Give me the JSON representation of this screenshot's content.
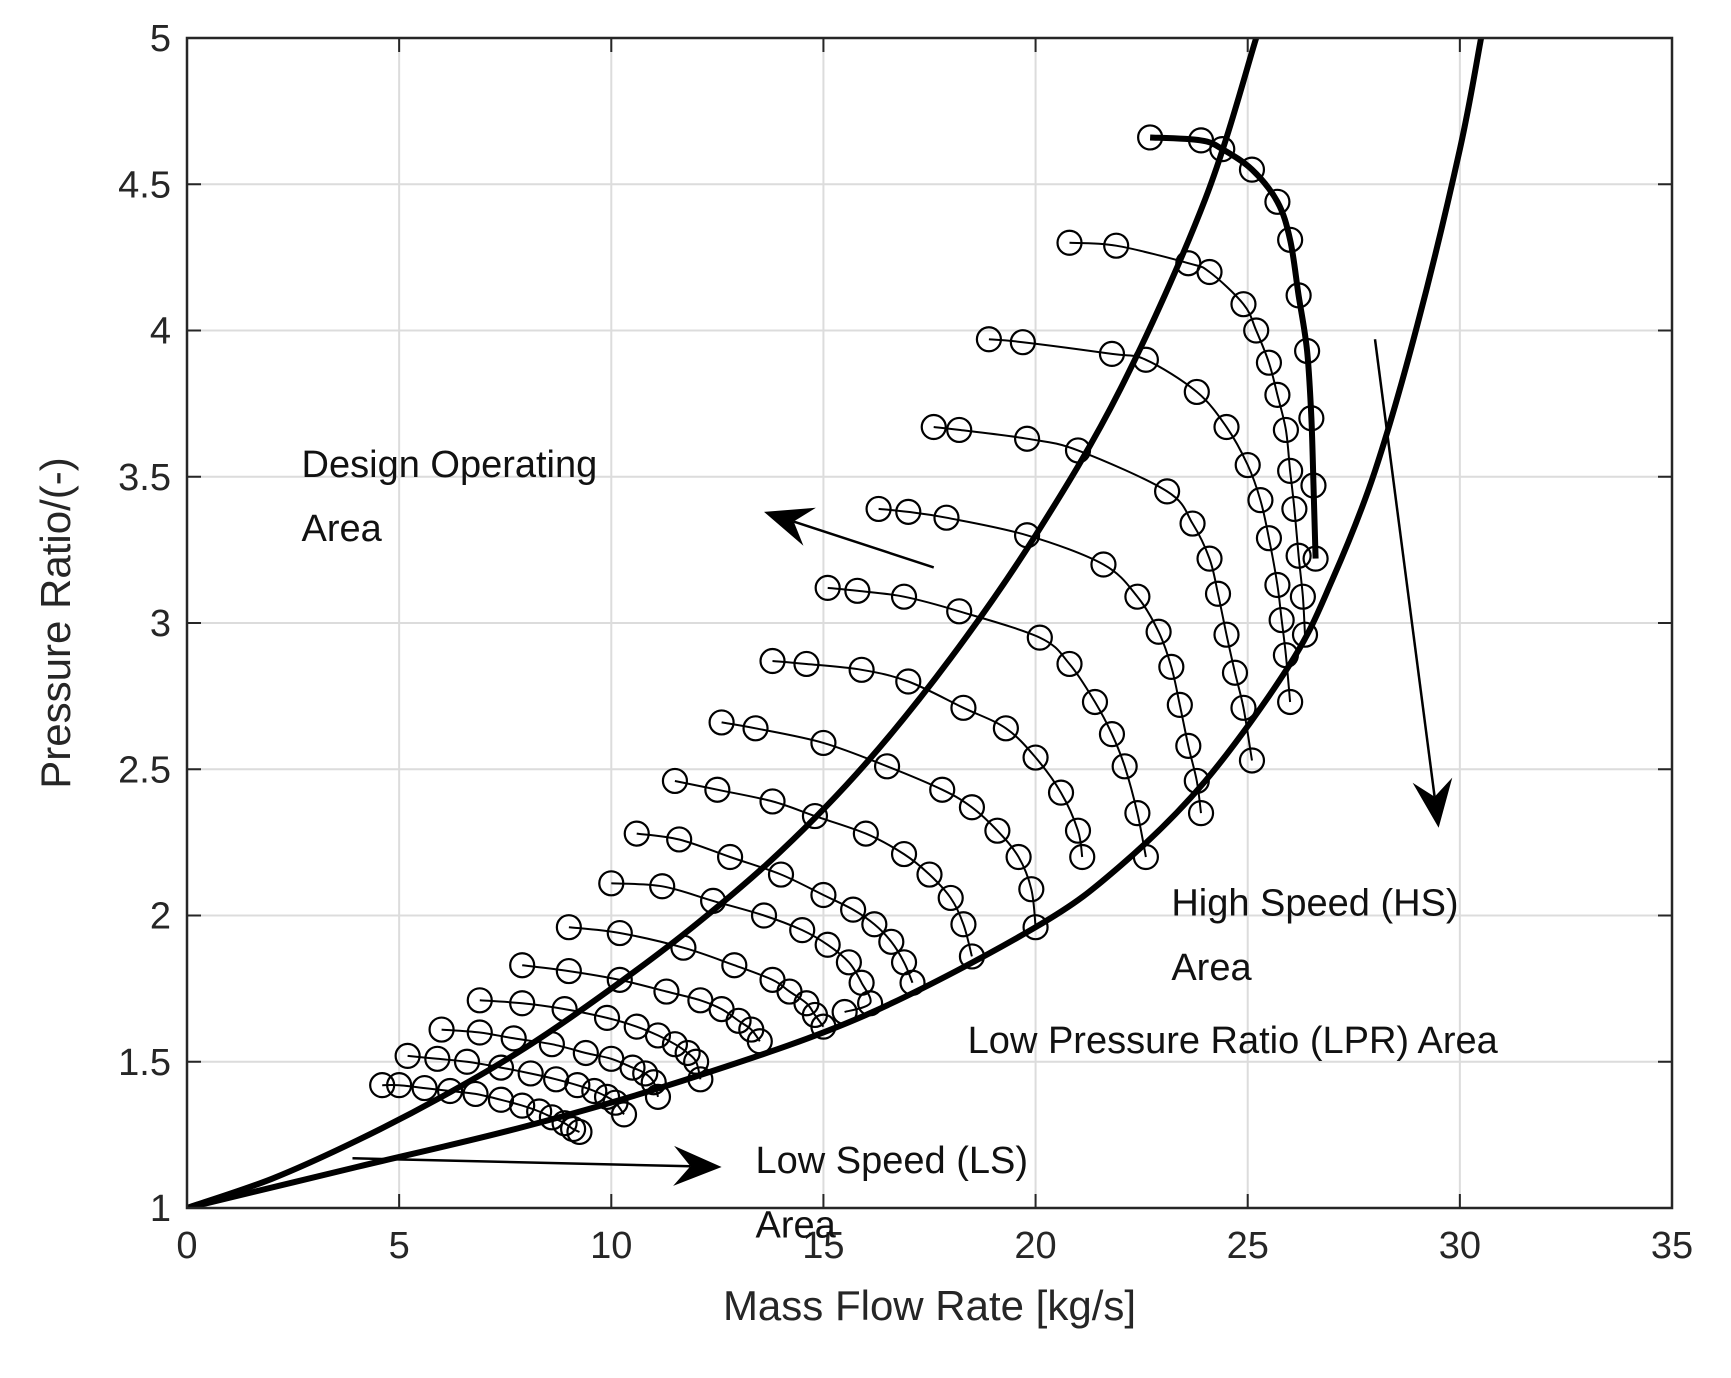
{
  "chart_data": {
    "type": "line",
    "xlabel": "Mass Flow Rate [kg/s]",
    "ylabel": "Pressure Ratio/(-)",
    "xlim": [
      0,
      35
    ],
    "ylim": [
      1,
      5
    ],
    "grid": true,
    "xticks": [
      0,
      5,
      10,
      15,
      20,
      25,
      30,
      35
    ],
    "yticks": [
      1,
      1.5,
      2,
      2.5,
      3,
      3.5,
      4,
      4.5,
      5
    ],
    "xtick_labels": [
      "0",
      "5",
      "10",
      "15",
      "20",
      "25",
      "30",
      "35"
    ],
    "ytick_labels": [
      "1",
      "1.5",
      "2",
      "2.5",
      "3",
      "3.5",
      "4",
      "4.5",
      "5"
    ],
    "speed_lines": [
      {
        "points": [
          [
            4.6,
            1.42
          ],
          [
            5.0,
            1.42
          ],
          [
            5.6,
            1.41
          ],
          [
            6.2,
            1.4
          ],
          [
            6.8,
            1.39
          ],
          [
            7.4,
            1.37
          ],
          [
            7.9,
            1.35
          ],
          [
            8.3,
            1.33
          ],
          [
            8.6,
            1.31
          ],
          [
            8.9,
            1.29
          ],
          [
            9.1,
            1.27
          ],
          [
            9.25,
            1.26
          ]
        ]
      },
      {
        "points": [
          [
            5.2,
            1.52
          ],
          [
            5.9,
            1.51
          ],
          [
            6.6,
            1.5
          ],
          [
            7.4,
            1.48
          ],
          [
            8.1,
            1.46
          ],
          [
            8.7,
            1.44
          ],
          [
            9.2,
            1.42
          ],
          [
            9.6,
            1.4
          ],
          [
            9.9,
            1.38
          ],
          [
            10.1,
            1.36
          ],
          [
            10.3,
            1.32
          ]
        ]
      },
      {
        "points": [
          [
            6.0,
            1.61
          ],
          [
            6.9,
            1.6
          ],
          [
            7.7,
            1.58
          ],
          [
            8.6,
            1.56
          ],
          [
            9.4,
            1.53
          ],
          [
            10.0,
            1.51
          ],
          [
            10.5,
            1.48
          ],
          [
            10.8,
            1.46
          ],
          [
            11.0,
            1.43
          ],
          [
            11.1,
            1.38
          ]
        ]
      },
      {
        "points": [
          [
            6.9,
            1.71
          ],
          [
            7.9,
            1.7
          ],
          [
            8.9,
            1.68
          ],
          [
            9.9,
            1.65
          ],
          [
            10.6,
            1.62
          ],
          [
            11.1,
            1.59
          ],
          [
            11.5,
            1.56
          ],
          [
            11.8,
            1.53
          ],
          [
            12.0,
            1.5
          ],
          [
            12.1,
            1.44
          ]
        ]
      },
      {
        "points": [
          [
            7.9,
            1.83
          ],
          [
            9.0,
            1.81
          ],
          [
            10.2,
            1.78
          ],
          [
            11.3,
            1.74
          ],
          [
            12.1,
            1.71
          ],
          [
            12.6,
            1.68
          ],
          [
            13.0,
            1.64
          ],
          [
            13.3,
            1.61
          ],
          [
            13.5,
            1.57
          ]
        ]
      },
      {
        "points": [
          [
            9.0,
            1.96
          ],
          [
            10.2,
            1.94
          ],
          [
            11.7,
            1.89
          ],
          [
            12.9,
            1.83
          ],
          [
            13.8,
            1.78
          ],
          [
            14.2,
            1.74
          ],
          [
            14.6,
            1.7
          ],
          [
            14.8,
            1.66
          ],
          [
            15.0,
            1.62
          ]
        ]
      },
      {
        "points": [
          [
            10.0,
            2.11
          ],
          [
            11.2,
            2.1
          ],
          [
            12.4,
            2.05
          ],
          [
            13.6,
            2.0
          ],
          [
            14.5,
            1.95
          ],
          [
            15.1,
            1.9
          ],
          [
            15.6,
            1.84
          ],
          [
            15.9,
            1.77
          ],
          [
            16.1,
            1.7
          ],
          [
            15.5,
            1.67
          ]
        ]
      },
      {
        "points": [
          [
            10.6,
            2.28
          ],
          [
            11.6,
            2.26
          ],
          [
            12.8,
            2.2
          ],
          [
            14.0,
            2.14
          ],
          [
            15.0,
            2.07
          ],
          [
            15.7,
            2.02
          ],
          [
            16.2,
            1.97
          ],
          [
            16.6,
            1.91
          ],
          [
            16.9,
            1.84
          ],
          [
            17.1,
            1.77
          ]
        ]
      },
      {
        "points": [
          [
            11.5,
            2.46
          ],
          [
            12.5,
            2.43
          ],
          [
            13.8,
            2.39
          ],
          [
            14.8,
            2.34
          ],
          [
            16.0,
            2.28
          ],
          [
            16.9,
            2.21
          ],
          [
            17.5,
            2.14
          ],
          [
            18.0,
            2.06
          ],
          [
            18.3,
            1.97
          ],
          [
            18.5,
            1.86
          ]
        ]
      },
      {
        "points": [
          [
            12.6,
            2.66
          ],
          [
            13.4,
            2.64
          ],
          [
            15.0,
            2.59
          ],
          [
            16.5,
            2.51
          ],
          [
            17.8,
            2.43
          ],
          [
            18.5,
            2.37
          ],
          [
            19.1,
            2.29
          ],
          [
            19.6,
            2.2
          ],
          [
            19.9,
            2.09
          ],
          [
            20.0,
            1.96
          ]
        ]
      },
      {
        "points": [
          [
            13.8,
            2.87
          ],
          [
            14.6,
            2.86
          ],
          [
            15.9,
            2.84
          ],
          [
            17.0,
            2.8
          ],
          [
            18.3,
            2.71
          ],
          [
            19.3,
            2.64
          ],
          [
            20.0,
            2.54
          ],
          [
            20.6,
            2.42
          ],
          [
            21.0,
            2.29
          ],
          [
            21.1,
            2.2
          ]
        ]
      },
      {
        "points": [
          [
            15.1,
            3.12
          ],
          [
            15.8,
            3.11
          ],
          [
            16.9,
            3.09
          ],
          [
            18.2,
            3.04
          ],
          [
            20.1,
            2.95
          ],
          [
            20.8,
            2.86
          ],
          [
            21.4,
            2.73
          ],
          [
            21.8,
            2.62
          ],
          [
            22.1,
            2.51
          ],
          [
            22.4,
            2.35
          ],
          [
            22.6,
            2.2
          ]
        ]
      },
      {
        "points": [
          [
            16.3,
            3.39
          ],
          [
            17.0,
            3.38
          ],
          [
            17.9,
            3.36
          ],
          [
            19.8,
            3.3
          ],
          [
            21.6,
            3.2
          ],
          [
            22.4,
            3.09
          ],
          [
            22.9,
            2.97
          ],
          [
            23.2,
            2.85
          ],
          [
            23.4,
            2.72
          ],
          [
            23.6,
            2.58
          ],
          [
            23.8,
            2.46
          ],
          [
            23.9,
            2.35
          ]
        ]
      },
      {
        "points": [
          [
            17.6,
            3.67
          ],
          [
            18.2,
            3.66
          ],
          [
            19.8,
            3.63
          ],
          [
            21.0,
            3.59
          ],
          [
            23.1,
            3.45
          ],
          [
            23.7,
            3.34
          ],
          [
            24.1,
            3.22
          ],
          [
            24.3,
            3.1
          ],
          [
            24.5,
            2.96
          ],
          [
            24.7,
            2.83
          ],
          [
            24.9,
            2.71
          ],
          [
            25.1,
            2.53
          ]
        ]
      },
      {
        "points": [
          [
            18.9,
            3.97
          ],
          [
            19.7,
            3.96
          ],
          [
            21.8,
            3.92
          ],
          [
            22.6,
            3.9
          ],
          [
            23.8,
            3.79
          ],
          [
            24.5,
            3.67
          ],
          [
            25.0,
            3.54
          ],
          [
            25.3,
            3.42
          ],
          [
            25.5,
            3.29
          ],
          [
            25.7,
            3.13
          ],
          [
            25.8,
            3.01
          ],
          [
            25.9,
            2.89
          ],
          [
            26.0,
            2.73
          ]
        ]
      },
      {
        "points": [
          [
            20.8,
            4.3
          ],
          [
            21.9,
            4.29
          ],
          [
            23.6,
            4.23
          ],
          [
            24.1,
            4.2
          ],
          [
            24.9,
            4.09
          ],
          [
            25.2,
            4.0
          ],
          [
            25.5,
            3.89
          ],
          [
            25.7,
            3.78
          ],
          [
            25.9,
            3.66
          ],
          [
            26.0,
            3.52
          ],
          [
            26.1,
            3.39
          ],
          [
            26.2,
            3.23
          ],
          [
            26.3,
            3.09
          ],
          [
            26.35,
            2.96
          ]
        ]
      }
    ],
    "top_speed_line": {
      "points": [
        [
          22.7,
          4.66
        ],
        [
          23.9,
          4.65
        ],
        [
          24.4,
          4.62
        ],
        [
          25.1,
          4.55
        ],
        [
          25.7,
          4.44
        ],
        [
          26.0,
          4.31
        ],
        [
          26.2,
          4.12
        ],
        [
          26.4,
          3.93
        ],
        [
          26.5,
          3.7
        ],
        [
          26.55,
          3.47
        ],
        [
          26.6,
          3.22
        ]
      ]
    },
    "surge_line": {
      "points": [
        [
          0,
          1.0
        ],
        [
          2,
          1.1
        ],
        [
          4,
          1.23
        ],
        [
          6,
          1.38
        ],
        [
          8,
          1.55
        ],
        [
          10,
          1.75
        ],
        [
          12,
          1.97
        ],
        [
          14,
          2.22
        ],
        [
          16,
          2.52
        ],
        [
          18,
          2.88
        ],
        [
          20,
          3.3
        ],
        [
          22,
          3.8
        ],
        [
          24,
          4.45
        ],
        [
          25.2,
          5.0
        ]
      ]
    },
    "choke_line": {
      "points": [
        [
          0,
          1.0
        ],
        [
          4,
          1.14
        ],
        [
          8,
          1.28
        ],
        [
          12,
          1.45
        ],
        [
          16,
          1.66
        ],
        [
          20,
          1.96
        ],
        [
          22,
          2.17
        ],
        [
          24,
          2.46
        ],
        [
          26,
          2.86
        ],
        [
          27,
          3.15
        ],
        [
          28,
          3.52
        ],
        [
          29,
          4.02
        ],
        [
          30,
          4.62
        ],
        [
          30.5,
          5.0
        ]
      ]
    },
    "annotations": [
      {
        "text": "Design Operating",
        "x": 2.7,
        "y": 3.5
      },
      {
        "text": "Area",
        "x": 2.7,
        "y": 3.28
      },
      {
        "text": "High Speed (HS)",
        "x": 23.2,
        "y": 2.0
      },
      {
        "text": "Area",
        "x": 23.2,
        "y": 1.78
      },
      {
        "text": "Low Pressure Ratio (LPR) Area",
        "x": 18.4,
        "y": 1.53
      },
      {
        "text": "Low Speed (LS)",
        "x": 13.4,
        "y": 1.12
      },
      {
        "text": "Area",
        "x": 13.4,
        "y": 0.9
      }
    ],
    "arrows": [
      {
        "from": [
          17.6,
          3.19
        ],
        "to": [
          13.6,
          3.38
        ]
      },
      {
        "from": [
          28.0,
          3.97
        ],
        "to": [
          29.5,
          2.3
        ]
      },
      {
        "from": [
          3.9,
          1.17
        ],
        "to": [
          12.6,
          1.14
        ]
      }
    ]
  }
}
